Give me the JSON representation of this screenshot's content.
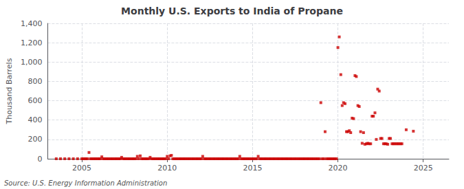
{
  "chart_data": {
    "type": "scatter",
    "title": "Monthly U.S. Exports to India of Propane",
    "ylabel": "Thousand Barrels",
    "annotations": [
      "Source: U.S. Energy Information Administration"
    ],
    "color": "#cc0000",
    "marker": "square",
    "grid": true,
    "xlim": [
      2003.0,
      2026.5
    ],
    "xticks": [
      2005,
      2010,
      2015,
      2020,
      2025
    ],
    "ylim": [
      0,
      1400
    ],
    "yticks": [
      0,
      200,
      400,
      600,
      800,
      {
        "value": 1000,
        "label": "1,000"
      },
      {
        "value": 1200,
        "label": "1,200"
      },
      {
        "value": 1400,
        "label": "1,400"
      }
    ],
    "x": [
      2003.5,
      2003.75,
      2004.0,
      2004.25,
      2004.5,
      2004.75,
      2005.0,
      2005.08,
      2005.17,
      2005.25,
      2005.33,
      2005.42,
      2005.5,
      2005.58,
      2005.67,
      2005.75,
      2005.83,
      2005.92,
      2006.0,
      2006.08,
      2006.17,
      2006.25,
      2006.33,
      2006.42,
      2006.5,
      2006.58,
      2006.67,
      2006.75,
      2006.83,
      2006.92,
      2007.0,
      2007.08,
      2007.17,
      2007.25,
      2007.33,
      2007.42,
      2007.5,
      2007.58,
      2007.67,
      2007.75,
      2007.83,
      2007.92,
      2008.0,
      2008.08,
      2008.17,
      2008.25,
      2008.33,
      2008.42,
      2008.5,
      2008.58,
      2008.67,
      2008.75,
      2008.83,
      2008.92,
      2009.0,
      2009.08,
      2009.17,
      2009.25,
      2009.33,
      2009.42,
      2009.5,
      2009.58,
      2009.67,
      2009.75,
      2009.83,
      2009.92,
      2010.0,
      2010.08,
      2010.17,
      2010.25,
      2010.33,
      2010.42,
      2010.5,
      2010.58,
      2010.67,
      2010.75,
      2010.83,
      2010.92,
      2011.0,
      2011.08,
      2011.17,
      2011.25,
      2011.33,
      2011.42,
      2011.5,
      2011.58,
      2011.67,
      2011.75,
      2011.83,
      2011.92,
      2012.0,
      2012.08,
      2012.17,
      2012.25,
      2012.33,
      2012.42,
      2012.5,
      2012.58,
      2012.67,
      2012.75,
      2012.83,
      2012.92,
      2013.0,
      2013.08,
      2013.17,
      2013.25,
      2013.33,
      2013.42,
      2013.5,
      2013.58,
      2013.67,
      2013.75,
      2013.83,
      2013.92,
      2014.0,
      2014.08,
      2014.17,
      2014.25,
      2014.33,
      2014.42,
      2014.5,
      2014.58,
      2014.67,
      2014.75,
      2014.83,
      2014.92,
      2015.0,
      2015.08,
      2015.17,
      2015.25,
      2015.33,
      2015.42,
      2015.5,
      2015.58,
      2015.67,
      2015.75,
      2015.83,
      2015.92,
      2016.0,
      2016.08,
      2016.17,
      2016.25,
      2016.33,
      2016.42,
      2016.5,
      2016.58,
      2016.67,
      2016.75,
      2016.83,
      2016.92,
      2017.0,
      2017.08,
      2017.17,
      2017.25,
      2017.33,
      2017.42,
      2017.5,
      2017.58,
      2017.67,
      2017.75,
      2017.83,
      2017.92,
      2018.0,
      2018.08,
      2018.17,
      2018.25,
      2018.33,
      2018.42,
      2018.5,
      2018.58,
      2018.67,
      2018.75,
      2018.83,
      2018.92,
      2019.0,
      2019.08,
      2019.17,
      2019.25,
      2019.33,
      2019.42,
      2019.5,
      2019.58,
      2019.67,
      2019.75,
      2019.83,
      2019.92,
      2020.0,
      2020.08,
      2020.17,
      2020.25,
      2020.33,
      2020.42,
      2020.5,
      2020.58,
      2020.67,
      2020.75,
      2020.83,
      2020.92,
      2021.0,
      2021.08,
      2021.17,
      2021.25,
      2021.33,
      2021.42,
      2021.5,
      2021.58,
      2021.67,
      2021.75,
      2021.83,
      2021.92,
      2022.0,
      2022.08,
      2022.17,
      2022.25,
      2022.33,
      2022.42,
      2022.5,
      2022.58,
      2022.67,
      2022.75,
      2022.83,
      2022.92,
      2023.0,
      2023.08,
      2023.17,
      2023.25,
      2023.33,
      2023.42,
      2023.5,
      2023.58,
      2023.67,
      2023.75,
      2024.0,
      2024.42
    ],
    "values": [
      0,
      0,
      0,
      0,
      0,
      0,
      0,
      0,
      0,
      0,
      0,
      65,
      0,
      0,
      0,
      0,
      0,
      0,
      0,
      0,
      20,
      0,
      0,
      0,
      0,
      0,
      0,
      0,
      0,
      0,
      0,
      0,
      0,
      0,
      15,
      0,
      0,
      0,
      0,
      0,
      0,
      0,
      0,
      0,
      0,
      25,
      0,
      30,
      0,
      0,
      0,
      0,
      0,
      0,
      15,
      0,
      0,
      0,
      0,
      0,
      0,
      0,
      0,
      0,
      0,
      0,
      25,
      0,
      30,
      35,
      0,
      0,
      0,
      0,
      0,
      0,
      0,
      0,
      0,
      0,
      0,
      0,
      0,
      0,
      0,
      0,
      0,
      0,
      0,
      0,
      0,
      25,
      0,
      0,
      0,
      0,
      0,
      0,
      0,
      0,
      0,
      0,
      0,
      0,
      0,
      0,
      0,
      0,
      0,
      0,
      0,
      0,
      0,
      0,
      0,
      0,
      0,
      25,
      0,
      0,
      0,
      0,
      0,
      0,
      0,
      0,
      0,
      0,
      0,
      0,
      25,
      0,
      0,
      0,
      0,
      0,
      0,
      0,
      0,
      0,
      0,
      0,
      0,
      0,
      0,
      0,
      0,
      0,
      0,
      0,
      0,
      0,
      0,
      0,
      0,
      0,
      0,
      0,
      0,
      0,
      0,
      0,
      0,
      0,
      0,
      0,
      0,
      0,
      0,
      0,
      0,
      0,
      0,
      0,
      580,
      0,
      0,
      280,
      0,
      0,
      0,
      0,
      0,
      0,
      0,
      0,
      1150,
      1260,
      870,
      550,
      580,
      570,
      280,
      280,
      290,
      270,
      420,
      415,
      860,
      850,
      550,
      540,
      280,
      160,
      270,
      150,
      155,
      160,
      155,
      155,
      440,
      440,
      475,
      200,
      720,
      700,
      210,
      210,
      155,
      155,
      155,
      150,
      210,
      210,
      155,
      155,
      155,
      155,
      155,
      155,
      155,
      155,
      300,
      285
    ]
  }
}
